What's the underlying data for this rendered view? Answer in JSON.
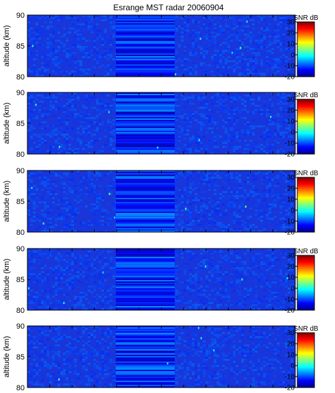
{
  "title": "Esrange MST radar 20060904",
  "panels": [
    {
      "ylabel": "altitude (km)",
      "yticks": [
        "90",
        "85",
        "80"
      ],
      "colorbar_label": "SNR dB",
      "colorbar_ticks": [
        "30",
        "20",
        "10",
        "0",
        "-10",
        "-20"
      ]
    },
    {
      "ylabel": "altitude (km)",
      "yticks": [
        "90",
        "85",
        "80"
      ],
      "colorbar_label": "SNR dB",
      "colorbar_ticks": [
        "30",
        "20",
        "10",
        "0",
        "-10",
        "-20"
      ]
    },
    {
      "ylabel": "altitude (km)",
      "yticks": [
        "90",
        "85",
        "80"
      ],
      "colorbar_label": "SNR dB",
      "colorbar_ticks": [
        "30",
        "20",
        "10",
        "0",
        "-10",
        "-20"
      ]
    },
    {
      "ylabel": "altitude (km)",
      "yticks": [
        "90",
        "85",
        "80"
      ],
      "colorbar_label": "SNR dB",
      "colorbar_ticks": [
        "30",
        "20",
        "10",
        "0",
        "-10",
        "-20"
      ]
    },
    {
      "ylabel": "altitude (km)",
      "yticks": [
        "90",
        "85",
        "80"
      ],
      "colorbar_label": "SNR dB",
      "colorbar_ticks": [
        "30",
        "20",
        "10",
        "0",
        "-10",
        "-20"
      ]
    }
  ],
  "chart_data": [
    {
      "type": "heatmap",
      "title": "Esrange MST radar 20060904",
      "ylabel": "altitude (km)",
      "ylim": [
        80,
        90
      ],
      "colorbar": {
        "label": "SNR dB",
        "range": [
          -20,
          30
        ],
        "colormap": "jet"
      },
      "features": {
        "horizontal_band_region_fraction": [
          0.33,
          0.55
        ],
        "background_snr_db": -15
      }
    },
    {
      "type": "heatmap",
      "ylabel": "altitude (km)",
      "ylim": [
        80,
        90
      ],
      "colorbar": {
        "label": "SNR dB",
        "range": [
          -20,
          30
        ],
        "colormap": "jet"
      },
      "features": {
        "horizontal_band_region_fraction": [
          0.33,
          0.55
        ],
        "background_snr_db": -15
      }
    },
    {
      "type": "heatmap",
      "ylabel": "altitude (km)",
      "ylim": [
        80,
        90
      ],
      "colorbar": {
        "label": "SNR dB",
        "range": [
          -20,
          30
        ],
        "colormap": "jet"
      },
      "features": {
        "horizontal_band_region_fraction": [
          0.33,
          0.55
        ],
        "background_snr_db": -15
      }
    },
    {
      "type": "heatmap",
      "ylabel": "altitude (km)",
      "ylim": [
        80,
        90
      ],
      "colorbar": {
        "label": "SNR dB",
        "range": [
          -20,
          30
        ],
        "colormap": "jet"
      },
      "features": {
        "horizontal_band_region_fraction": [
          0.33,
          0.55
        ],
        "background_snr_db": -15
      }
    },
    {
      "type": "heatmap",
      "ylabel": "altitude (km)",
      "ylim": [
        80,
        90
      ],
      "colorbar": {
        "label": "SNR dB",
        "range": [
          -20,
          30
        ],
        "colormap": "jet"
      },
      "features": {
        "horizontal_band_region_fraction": [
          0.33,
          0.55
        ],
        "background_snr_db": -15
      }
    }
  ]
}
